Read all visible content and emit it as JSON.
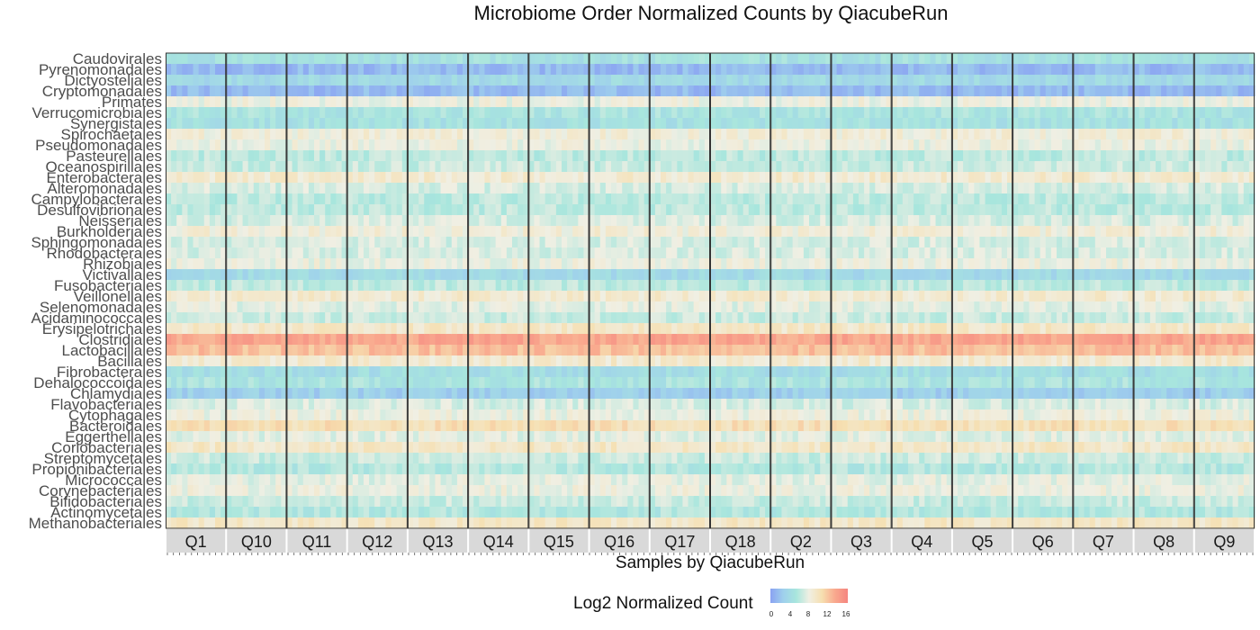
{
  "chart_data": {
    "type": "heatmap",
    "title": "Microbiome Order Normalized Counts by QiacubeRun",
    "xlabel": "Samples by QiacubeRun",
    "ylabel": "",
    "facets": [
      "Q1",
      "Q10",
      "Q11",
      "Q12",
      "Q13",
      "Q14",
      "Q15",
      "Q16",
      "Q17",
      "Q18",
      "Q2",
      "Q3",
      "Q4",
      "Q5",
      "Q6",
      "Q7",
      "Q8",
      "Q9"
    ],
    "rows": [
      "Caudovirales",
      "Pyrenomonadales",
      "Dictyosteliales",
      "Cryptomonadales",
      "Primates",
      "Verrucomicrobiales",
      "Synergistales",
      "Spirochaetales",
      "Pseudomonadales",
      "Pasteurellales",
      "Oceanospirillales",
      "Enterobacterales",
      "Alteromonadales",
      "Campylobacterales",
      "Desulfovibrionales",
      "Neisseriales",
      "Burkholderiales",
      "Sphingomonadales",
      "Rhodobacterales",
      "Rhizobiales",
      "Victivallales",
      "Fusobacteriales",
      "Veillonellales",
      "Selenomonadales",
      "Acidaminococcales",
      "Erysipelotrichales",
      "Clostridiales",
      "Lactobacillales",
      "Bacillales",
      "Fibrobacterales",
      "Dehalococcoidales",
      "Chlamydiales",
      "Flavobacteriales",
      "Cytophagales",
      "Bacteroidales",
      "Eggerthellales",
      "Coriobacteriales",
      "Streptomycetales",
      "Propionibacteriales",
      "Micrococcales",
      "Corynebacteriales",
      "Bifidobacteriales",
      "Actinomycetales",
      "Methanobacteriales"
    ],
    "row_mean_log2": [
      5.0,
      1.5,
      4.0,
      1.5,
      8.5,
      5.5,
      5.0,
      9.0,
      8.5,
      6.5,
      7.0,
      9.5,
      7.5,
      6.5,
      6.5,
      7.5,
      9.0,
      7.5,
      7.5,
      8.5,
      4.0,
      6.5,
      9.5,
      8.0,
      7.0,
      10.0,
      14.5,
      13.0,
      9.5,
      4.5,
      5.5,
      3.0,
      7.5,
      8.5,
      11.0,
      8.0,
      10.0,
      7.0,
      6.0,
      8.0,
      8.5,
      7.0,
      6.0,
      10.0
    ],
    "legend": {
      "title": "Log2 Normalized Count",
      "ticks": [
        "0",
        "4",
        "8",
        "12",
        "16"
      ],
      "range": [
        0,
        17
      ]
    },
    "colors": [
      "#8aa2f2",
      "#9fd0ec",
      "#a8e6dd",
      "#f0efe3",
      "#f6dfb0",
      "#f9a98e",
      "#f58580"
    ],
    "strip_color": "#d9d9d9",
    "grid": false
  }
}
